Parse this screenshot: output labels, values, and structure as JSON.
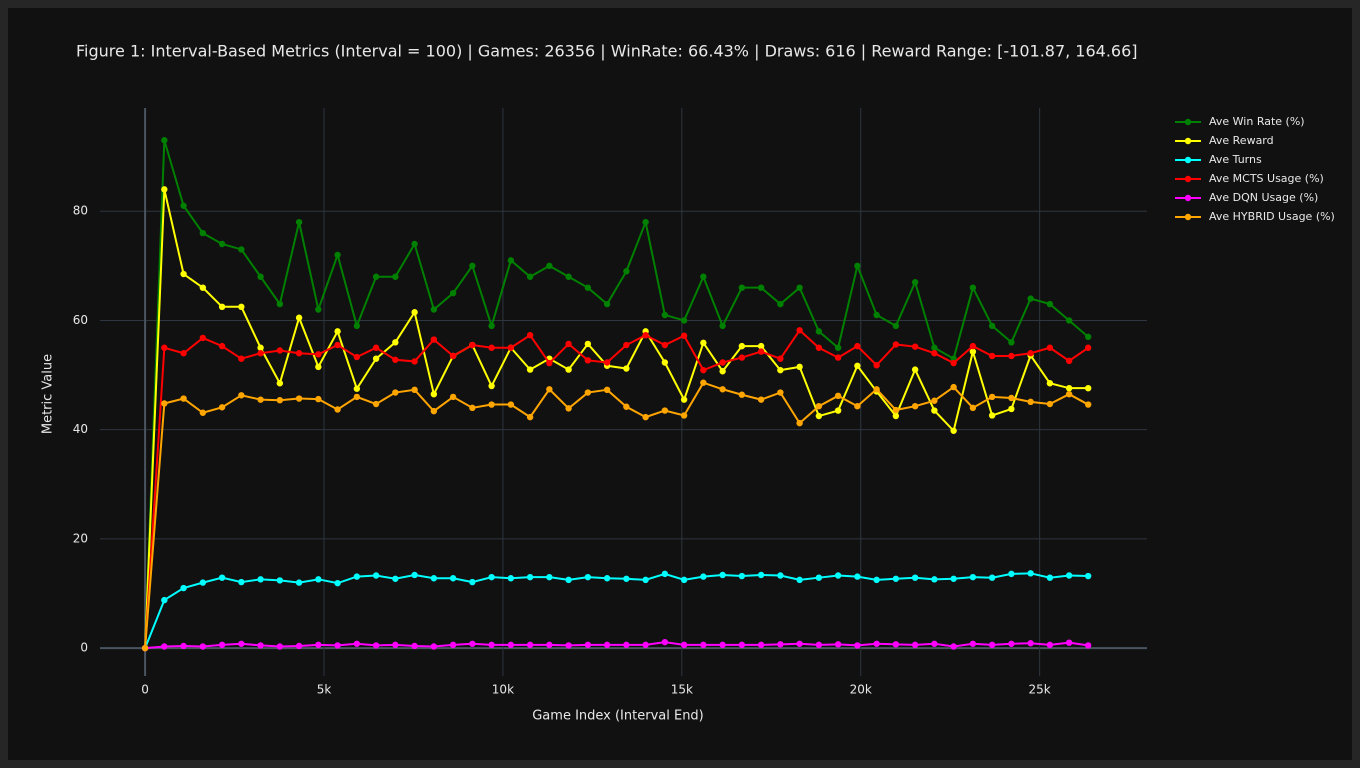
{
  "chart_data": {
    "type": "line",
    "title": "Figure 1: Interval-Based Metrics (Interval = 100) | Games: 26356 | WinRate: 66.43% | Draws: 616 | Reward Range: [-101.87, 164.66]",
    "x_label": "Game Index (Interval End)",
    "y_label": "Metric Value",
    "x": [
      0,
      538,
      1076,
      1614,
      2152,
      2690,
      3228,
      3766,
      4304,
      4842,
      5380,
      5918,
      6456,
      6994,
      7532,
      8070,
      8608,
      9146,
      9684,
      10222,
      10760,
      11298,
      11836,
      12374,
      12912,
      13450,
      13988,
      14526,
      15064,
      15602,
      16140,
      16678,
      17216,
      17754,
      18292,
      18830,
      19368,
      19906,
      20444,
      20982,
      21520,
      22058,
      22596,
      23134,
      23672,
      24210,
      24748,
      25286,
      25824,
      26356
    ],
    "series": [
      {
        "name": "Ave Win Rate (%)",
        "color": "#008000",
        "values": [
          0,
          93,
          81,
          76,
          74,
          73,
          68,
          63,
          78,
          62,
          72,
          59,
          68,
          68,
          74,
          62,
          65,
          70,
          59,
          71,
          68,
          70,
          68,
          66,
          63,
          69,
          78,
          61,
          60,
          68,
          59,
          66,
          66,
          63,
          66,
          58,
          55,
          70,
          61,
          59,
          67,
          55,
          53,
          66,
          59,
          56,
          64,
          63,
          60,
          57
        ]
      },
      {
        "name": "Ave Reward",
        "color": "#ffff00",
        "values": [
          0,
          84,
          68.5,
          66,
          62.5,
          62.5,
          55,
          48.5,
          60.5,
          51.5,
          58,
          47.5,
          53,
          56,
          61.5,
          46.5,
          53.5,
          55.5,
          48,
          55,
          51,
          53,
          51,
          55.7,
          51.7,
          51.2,
          58,
          52.3,
          45.5,
          55.9,
          50.7,
          55.3,
          55.3,
          50.9,
          51.5,
          42.5,
          43.5,
          51.7,
          47,
          42.5,
          51,
          43.5,
          39.8,
          54.3,
          42.6,
          43.8,
          53.6,
          48.5,
          47.6,
          47.6
        ]
      },
      {
        "name": "Ave Turns",
        "color": "#00ffff",
        "values": [
          0,
          8.8,
          11,
          12,
          12.9,
          12.1,
          12.6,
          12.4,
          12,
          12.6,
          11.9,
          13.1,
          13.3,
          12.7,
          13.4,
          12.8,
          12.8,
          12.1,
          13,
          12.8,
          13,
          13,
          12.5,
          13,
          12.8,
          12.7,
          12.5,
          13.6,
          12.5,
          13.1,
          13.4,
          13.2,
          13.4,
          13.3,
          12.5,
          12.9,
          13.3,
          13.1,
          12.5,
          12.7,
          12.9,
          12.6,
          12.7,
          13,
          12.9,
          13.6,
          13.7,
          12.9,
          13.3,
          13.2
        ]
      },
      {
        "name": "Ave MCTS Usage (%)",
        "color": "#ff0000",
        "values": [
          0,
          55,
          54,
          56.8,
          55.3,
          53,
          54,
          54.5,
          54,
          53.8,
          55.5,
          53.3,
          55,
          52.8,
          52.5,
          56.5,
          53.5,
          55.5,
          55,
          55,
          57.3,
          52.2,
          55.7,
          52.7,
          52.3,
          55.5,
          57.3,
          55.5,
          57.2,
          50.9,
          52.3,
          53.2,
          54.3,
          53,
          58.2,
          55,
          53.2,
          55.3,
          51.8,
          55.6,
          55.2,
          54,
          52.2,
          55.3,
          53.5,
          53.5,
          54,
          55,
          52.6,
          55
        ]
      },
      {
        "name": "Ave DQN Usage (%)",
        "color": "#ff00ff",
        "values": [
          0,
          0.3,
          0.4,
          0.3,
          0.6,
          0.8,
          0.5,
          0.3,
          0.4,
          0.6,
          0.5,
          0.8,
          0.5,
          0.6,
          0.4,
          0.3,
          0.6,
          0.8,
          0.6,
          0.6,
          0.6,
          0.6,
          0.5,
          0.6,
          0.6,
          0.6,
          0.6,
          1.1,
          0.6,
          0.6,
          0.6,
          0.6,
          0.6,
          0.7,
          0.8,
          0.6,
          0.7,
          0.5,
          0.8,
          0.7,
          0.6,
          0.8,
          0.3,
          0.8,
          0.6,
          0.8,
          0.9,
          0.6,
          1,
          0.5
        ]
      },
      {
        "name": "Ave HYBRID Usage (%)",
        "color": "#ffa500",
        "values": [
          0,
          44.8,
          45.7,
          43.1,
          44.1,
          46.3,
          45.5,
          45.4,
          45.7,
          45.6,
          43.7,
          46,
          44.7,
          46.8,
          47.3,
          43.4,
          46,
          44,
          44.6,
          44.6,
          42.3,
          47.4,
          43.9,
          46.8,
          47.3,
          44.2,
          42.3,
          43.5,
          42.6,
          48.6,
          47.4,
          46.4,
          45.5,
          46.8,
          41.2,
          44.3,
          46.2,
          44.3,
          47.4,
          43.6,
          44.3,
          45.3,
          47.8,
          44,
          46,
          45.8,
          45.1,
          44.7,
          46.5,
          44.6
        ]
      }
    ],
    "xlim": [
      -1260,
      28000
    ],
    "ylim": [
      -5.1,
      98.9
    ],
    "xticks": [
      0,
      {
        "value": 5000,
        "label": "5k"
      },
      {
        "value": 10000,
        "label": "10k"
      },
      {
        "value": 15000,
        "label": "15k"
      },
      {
        "value": 20000,
        "label": "20k"
      },
      {
        "value": 25000,
        "label": "25k"
      }
    ],
    "yticks": [
      0,
      20,
      40,
      60,
      80
    ],
    "grid": true,
    "legend": "right"
  }
}
